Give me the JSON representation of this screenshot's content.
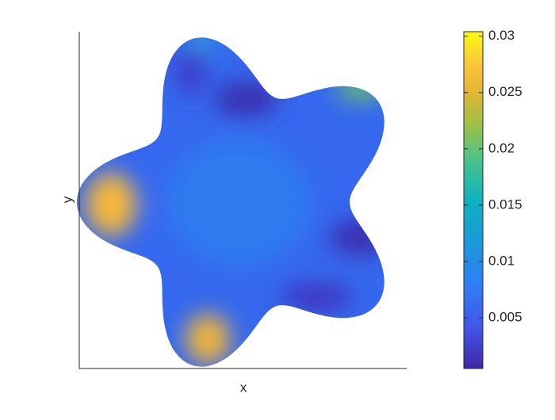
{
  "chart_data": {
    "type": "surface",
    "xlabel": "x",
    "ylabel": "y",
    "colormap": "parula",
    "clim": [
      0.0005,
      0.0304
    ],
    "cticks": [
      0.005,
      0.01,
      0.015,
      0.02,
      0.025,
      0.03
    ]
  }
}
